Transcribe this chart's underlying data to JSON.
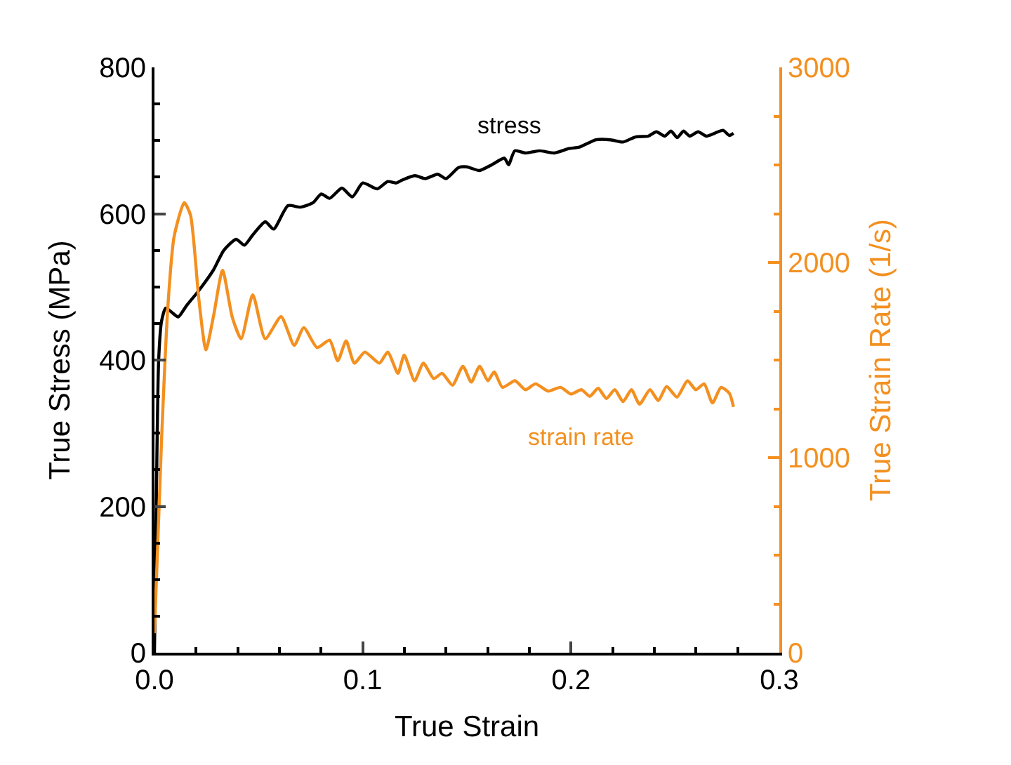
{
  "chart_data": {
    "type": "line",
    "xlabel": "True Strain",
    "ylabel": "True Stress (MPa)",
    "y2label": "True Strain Rate (1/s)",
    "xlim": [
      0,
      0.3
    ],
    "xticks": [
      {
        "value": 0,
        "label": "0.0"
      },
      0.1,
      0.2,
      0.3
    ],
    "ylim": [
      0,
      800
    ],
    "yticks": [
      0,
      200,
      400,
      600,
      800
    ],
    "y2lim": [
      0,
      3000
    ],
    "y2ticks": [
      0,
      1000,
      2000,
      3000
    ],
    "legend": false,
    "marker": "none",
    "line_style": "solid",
    "series": [
      {
        "name": "stress",
        "color": "#000000",
        "x": [
          0,
          0.001,
          0.002,
          0.0034,
          0.0054,
          0.0084,
          0.0114,
          0.0153,
          0.0213,
          0.0283,
          0.0333,
          0.0392,
          0.0432,
          0.0472,
          0.0532,
          0.0572,
          0.0641,
          0.0701,
          0.0761,
          0.0801,
          0.0841,
          0.09,
          0.095,
          0.1,
          0.107,
          0.112,
          0.116,
          0.119,
          0.125,
          0.13,
          0.136,
          0.14,
          0.146,
          0.15,
          0.156,
          0.162,
          0.168,
          0.17,
          0.173,
          0.178,
          0.185,
          0.192,
          0.199,
          0.204,
          0.212,
          0.219,
          0.225,
          0.231,
          0.237,
          0.241,
          0.245,
          0.248,
          0.251,
          0.254,
          0.257,
          0.261,
          0.265,
          0.269,
          0.273,
          0.276,
          0.278
        ],
        "values": [
          0,
          230,
          399,
          453,
          471,
          465,
          459,
          474,
          495,
          523,
          550,
          565,
          557,
          571,
          589,
          579,
          611,
          609,
          615,
          627,
          621,
          635,
          623,
          642,
          634,
          644,
          642,
          646,
          652,
          648,
          654,
          648,
          663,
          664,
          659,
          667,
          676,
          667,
          686,
          683,
          686,
          683,
          689,
          691,
          701,
          701,
          698,
          705,
          706,
          712,
          706,
          713,
          704,
          713,
          706,
          712,
          706,
          710,
          714,
          707,
          710
        ]
      },
      {
        "name": "strain rate",
        "color": "#f39020",
        "axis": "y2",
        "x": [
          0,
          0.0034,
          0.0064,
          0.0094,
          0.0143,
          0.0173,
          0.0213,
          0.0247,
          0.0283,
          0.0327,
          0.0373,
          0.0416,
          0.0472,
          0.0532,
          0.0608,
          0.0671,
          0.0717,
          0.0781,
          0.0841,
          0.088,
          0.092,
          0.096,
          0.101,
          0.108,
          0.112,
          0.1169,
          0.1199,
          0.1249,
          0.1291,
          0.1341,
          0.1381,
          0.1431,
          0.1481,
          0.1521,
          0.1561,
          0.1601,
          0.1631,
          0.1671,
          0.1731,
          0.1781,
          0.183,
          0.189,
          0.195,
          0.2,
          0.205,
          0.209,
          0.213,
          0.217,
          0.221,
          0.225,
          0.229,
          0.2329,
          0.2379,
          0.2419,
          0.2459,
          0.2509,
          0.2559,
          0.2599,
          0.2639,
          0.2679,
          0.272,
          0.276,
          0.278
        ],
        "values": [
          100,
          1088,
          1767,
          2130,
          2307,
          2243,
          1813,
          1552,
          1722,
          1960,
          1722,
          1609,
          1835,
          1609,
          1722,
          1575,
          1666,
          1564,
          1602,
          1496,
          1598,
          1484,
          1541,
          1484,
          1541,
          1432,
          1525,
          1394,
          1484,
          1405,
          1432,
          1371,
          1468,
          1387,
          1468,
          1394,
          1439,
          1360,
          1394,
          1348,
          1378,
          1341,
          1360,
          1326,
          1348,
          1314,
          1355,
          1303,
          1348,
          1287,
          1348,
          1274,
          1348,
          1292,
          1364,
          1310,
          1394,
          1348,
          1378,
          1280,
          1360,
          1330,
          1260
        ]
      }
    ]
  }
}
